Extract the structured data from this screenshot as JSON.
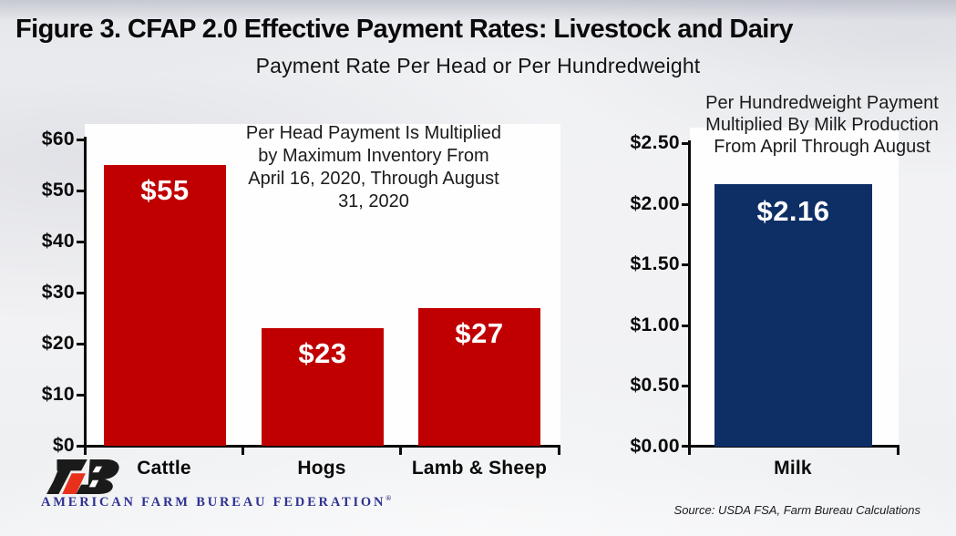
{
  "page": {
    "title": "Figure 3. CFAP 2.0 Effective Payment Rates: Livestock and Dairy",
    "subtitle": "Payment Rate Per Head or Per Hundredweight",
    "source": "Source: USDA FSA, Farm Bureau Calculations",
    "logo_text": "AMERICAN FARM BUREAU FEDERATION",
    "logo_registered_mark": "®"
  },
  "colors": {
    "livestock_bar": "#c00000",
    "milk_bar": "#0e2f66",
    "logo_red": "#e8311c",
    "logo_black": "#1a1a1a",
    "logo_blue_text": "#2e3192",
    "axis": "#0a0a0a",
    "value_label_text": "#ffffff"
  },
  "chart_data": [
    {
      "type": "bar",
      "name": "livestock_per_head_payments",
      "annotation": "Per Head Payment Is Multiplied by Maximum Inventory From April 16, 2020, Through August 31, 2020",
      "annotation_lines": [
        "Per Head Payment Is Multiplied",
        "by Maximum Inventory From",
        "April 16, 2020, Through August",
        "31, 2020"
      ],
      "categories": [
        "Cattle",
        "Hogs",
        "Lamb & Sheep"
      ],
      "values": [
        55,
        23,
        27
      ],
      "value_labels": [
        "$55",
        "$23",
        "$27"
      ],
      "y_ticks": [
        "$60",
        "$50",
        "$40",
        "$30",
        "$20",
        "$10",
        "$0"
      ],
      "ylim": [
        0,
        60
      ],
      "ylabel": "",
      "xlabel": "",
      "grid": false,
      "bar_color": "#c00000"
    },
    {
      "type": "bar",
      "name": "milk_per_hundredweight_payment",
      "annotation": "Per Hundredweight Payment Multiplied By Milk Production From April Through August",
      "annotation_lines": [
        "Per Hundredweight Payment",
        "Multiplied By Milk Production",
        "From April Through August"
      ],
      "categories": [
        "Milk"
      ],
      "values": [
        2.16
      ],
      "value_labels": [
        "$2.16"
      ],
      "y_ticks": [
        "$2.50",
        "$2.00",
        "$1.50",
        "$1.00",
        "$0.50",
        "$0.00"
      ],
      "ylim": [
        0,
        2.5
      ],
      "ylabel": "",
      "xlabel": "",
      "grid": false,
      "bar_color": "#0e2f66"
    }
  ]
}
